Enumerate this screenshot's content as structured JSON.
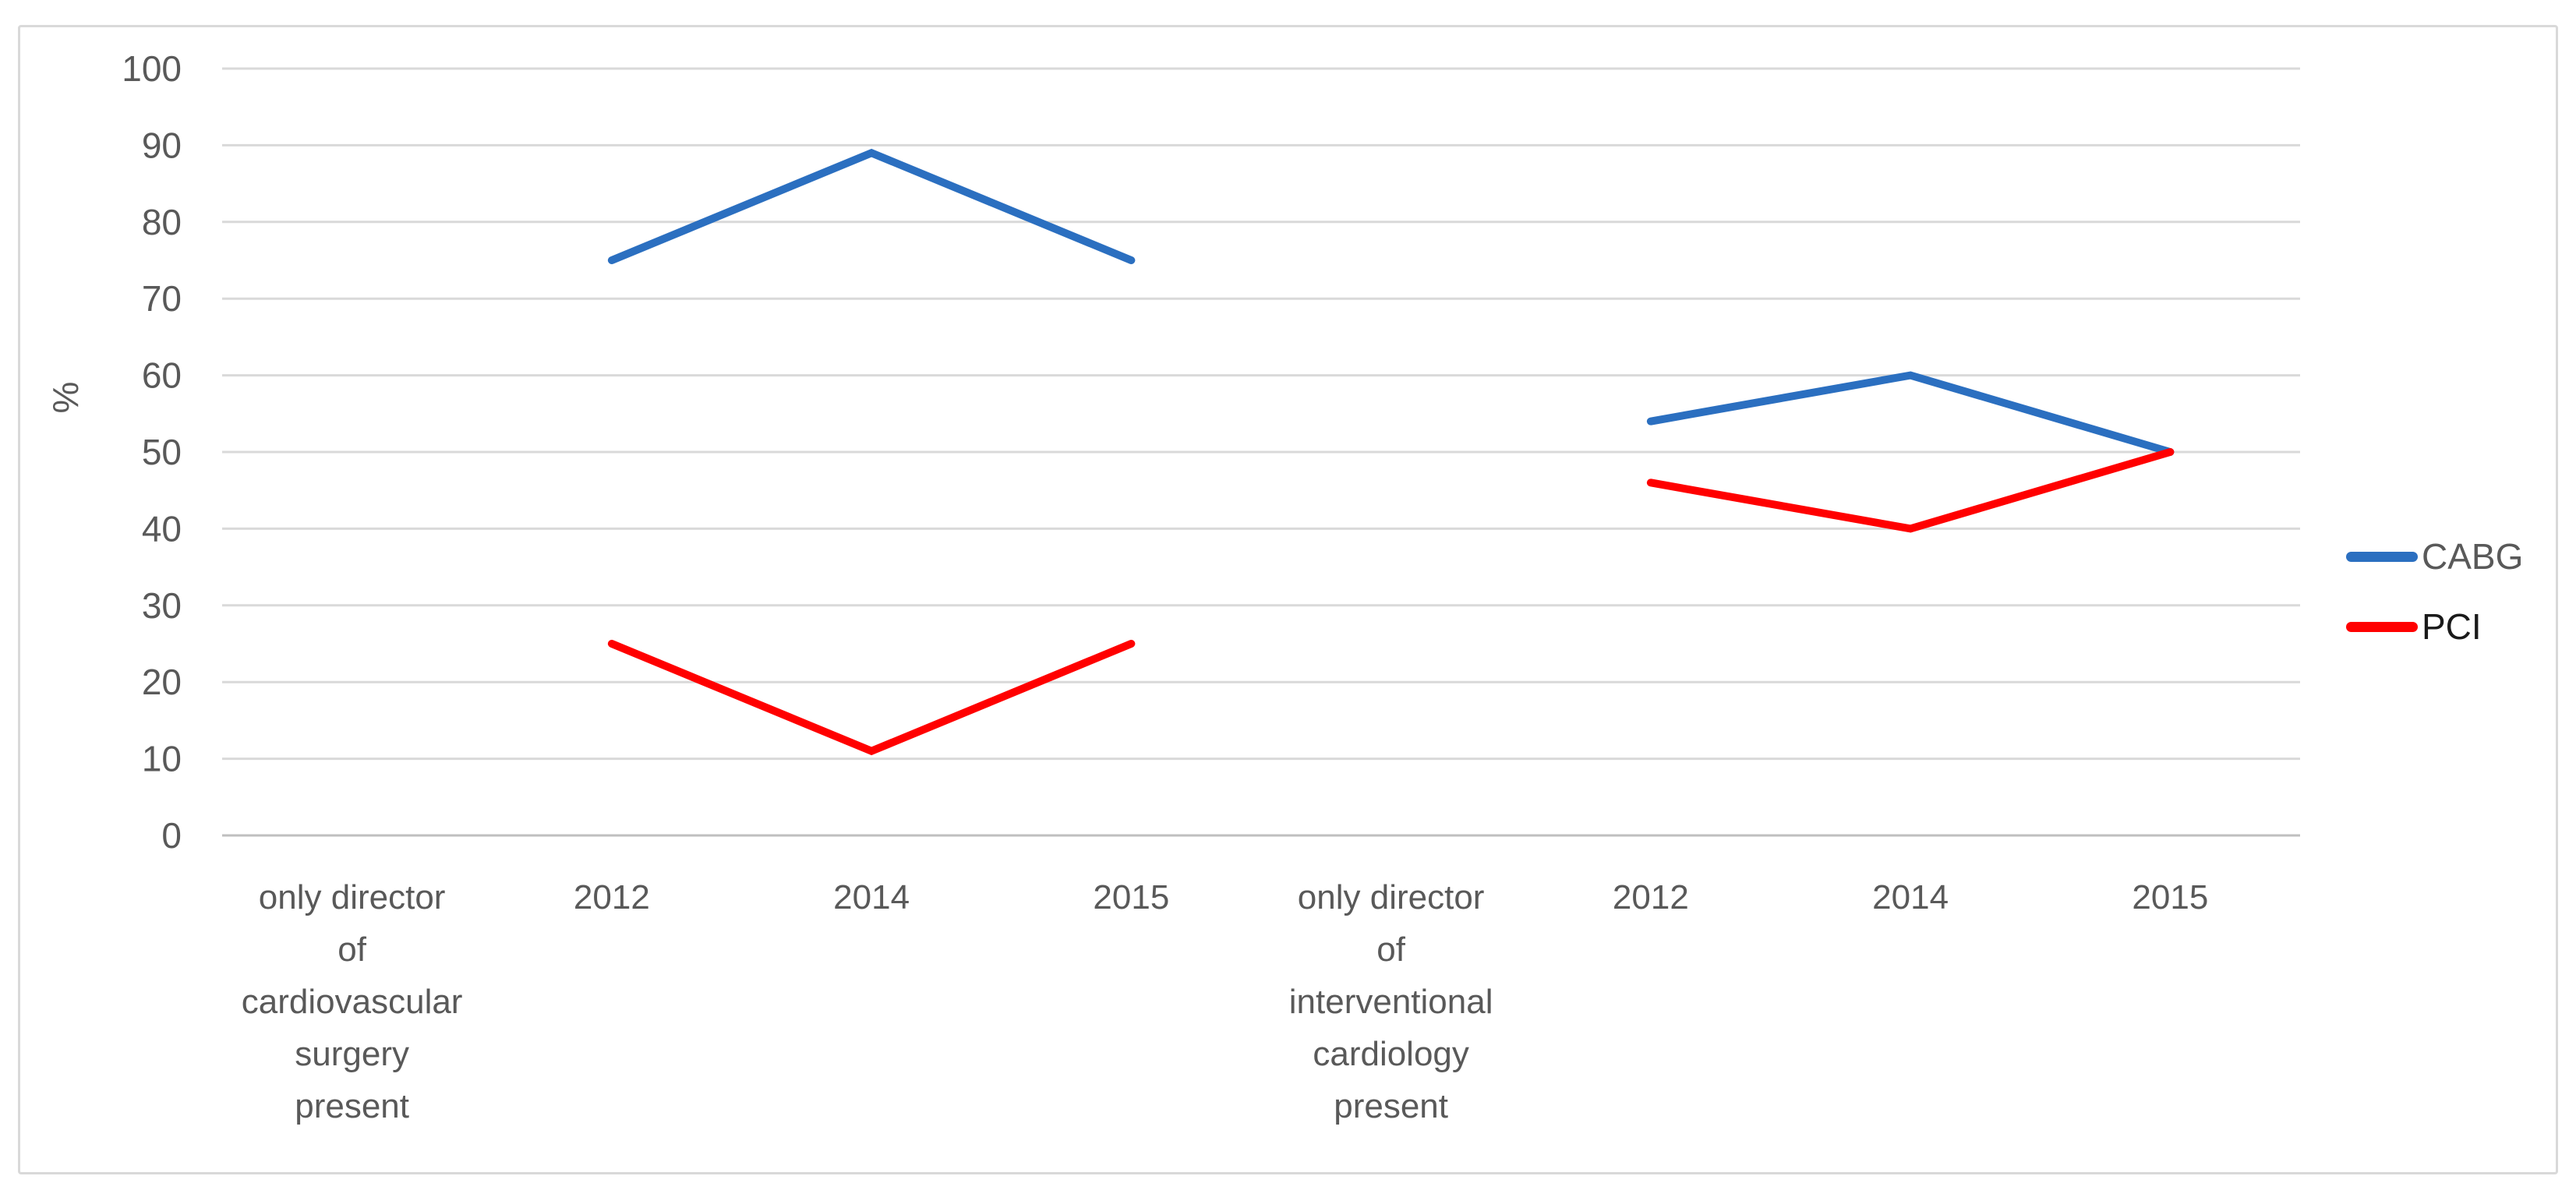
{
  "chart_data": {
    "type": "line",
    "title": "",
    "xlabel": "",
    "ylabel": "%",
    "ylim": [
      0,
      100
    ],
    "ytick_step": 10,
    "grid": true,
    "legend_position": "right",
    "categories": [
      {
        "label": "only director of cardiovascular surgery present",
        "lines": [
          "only director",
          "of",
          "cardiovascular",
          "surgery",
          "present"
        ]
      },
      {
        "label": "2012",
        "lines": [
          "2012"
        ]
      },
      {
        "label": "2014",
        "lines": [
          "2014"
        ]
      },
      {
        "label": "2015",
        "lines": [
          "2015"
        ]
      },
      {
        "label": "only director of interventional cardiology present",
        "lines": [
          "only director",
          "of",
          "interventional",
          "cardiology",
          "present"
        ]
      },
      {
        "label": "2012",
        "lines": [
          "2012"
        ]
      },
      {
        "label": "2014",
        "lines": [
          "2014"
        ]
      },
      {
        "label": "2015",
        "lines": [
          "2015"
        ]
      }
    ],
    "series": [
      {
        "name": "CABG",
        "color": "#2B6FC0",
        "label_color": "#595959",
        "values": [
          null,
          75,
          89,
          75,
          null,
          54,
          60,
          50
        ]
      },
      {
        "name": "PCI",
        "color": "#FF0000",
        "label_color": "#1A1A1A",
        "values": [
          null,
          25,
          11,
          25,
          null,
          46,
          40,
          50
        ]
      }
    ],
    "colors": {
      "gridline": "#D9D9D9",
      "axis_line": "#BFBFBF",
      "tick_text": "#595959",
      "category_text": "#595959"
    }
  }
}
